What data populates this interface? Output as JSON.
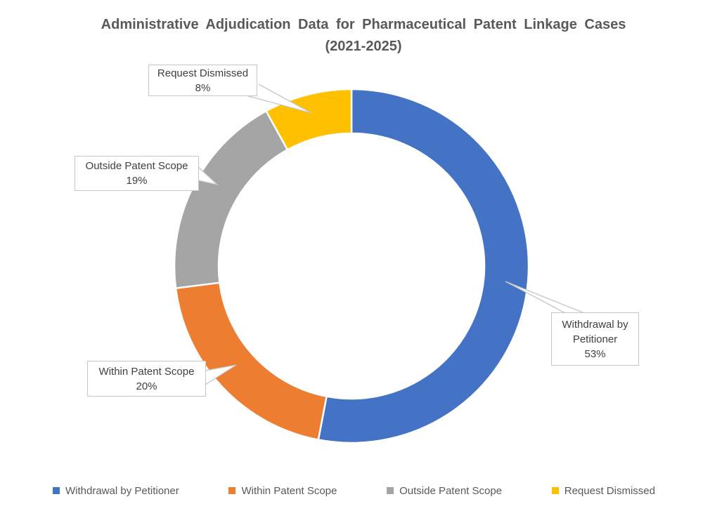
{
  "title": {
    "line1": "Administrative Adjudication Data for Pharmaceutical Patent Linkage Cases",
    "line2": "(2021-2025)",
    "color": "#595959"
  },
  "chart_data": {
    "type": "pie",
    "subtype": "donut",
    "title": "Administrative Adjudication Data for Pharmaceutical Patent Linkage Cases (2021-2025)",
    "categories": [
      "Withdrawal by Petitioner",
      "Within Patent Scope",
      "Outside Patent Scope",
      "Request Dismissed"
    ],
    "values": [
      53,
      20,
      19,
      8
    ],
    "unit": "percent",
    "colors": [
      "#4472C4",
      "#ED7D31",
      "#A5A5A5",
      "#FFC000"
    ],
    "donut_hole_ratio": 0.75,
    "start_angle_deg": 0,
    "direction": "clockwise",
    "legend_position": "bottom",
    "slice_border_color": "#ffffff",
    "data_label_style": "callout boxes with category name and percentage"
  },
  "callouts": [
    {
      "label": "Withdrawal by Petitioner",
      "value": "53%"
    },
    {
      "label": "Within Patent Scope",
      "value": "20%"
    },
    {
      "label": "Outside Patent Scope",
      "value": "19%"
    },
    {
      "label": "Request Dismissed",
      "value": "8%"
    }
  ],
  "legend": {
    "items": [
      {
        "label": "Withdrawal by Petitioner",
        "color": "#4472C4"
      },
      {
        "label": "Within Patent Scope",
        "color": "#ED7D31"
      },
      {
        "label": "Outside Patent Scope",
        "color": "#A5A5A5"
      },
      {
        "label": "Request Dismissed",
        "color": "#FFC000"
      }
    ]
  }
}
